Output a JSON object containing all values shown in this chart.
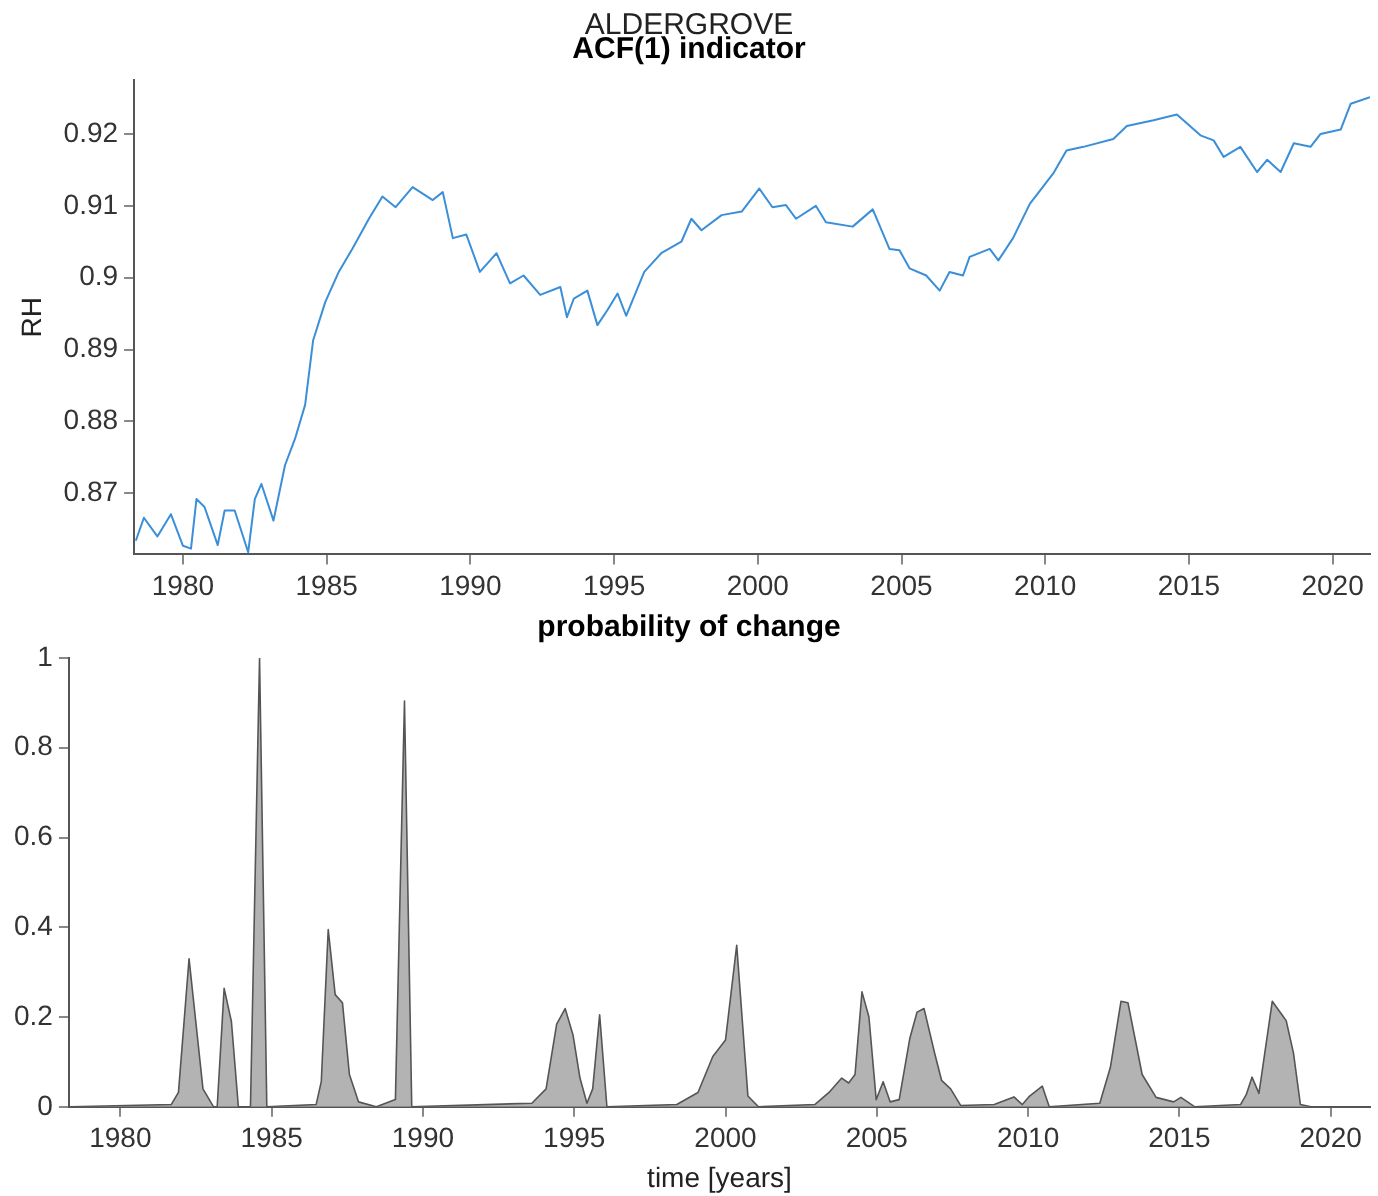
{
  "chart_data": [
    {
      "type": "line",
      "title": "ACF(1) indicator",
      "annotations": [
        "ALDERGROVE"
      ],
      "ylabel": "RH",
      "xlim": [
        1978.3,
        2021.3
      ],
      "ylim": [
        0.8615,
        0.9275
      ],
      "xticks": [
        1980,
        1985,
        1990,
        1995,
        2000,
        2005,
        2010,
        2015,
        2020
      ],
      "yticks": [
        0.87,
        0.88,
        0.89,
        0.9,
        0.91,
        0.92
      ],
      "grid": false,
      "legend": false,
      "marker": "none",
      "series": [
        {
          "color": "#3a8fd8",
          "x": [
            1978.36,
            1978.64,
            1979.11,
            1979.58,
            1980.0,
            1980.28,
            1980.47,
            1980.75,
            1981.21,
            1981.45,
            1981.8,
            1982.27,
            1982.5,
            1982.73,
            1983.15,
            1983.55,
            1983.9,
            1984.25,
            1984.53,
            1984.95,
            1985.42,
            1985.89,
            1986.47,
            1986.94,
            1987.4,
            1987.99,
            1988.69,
            1989.04,
            1989.39,
            1989.86,
            1990.33,
            1990.91,
            1991.38,
            1991.85,
            1992.43,
            1993.13,
            1993.36,
            1993.6,
            1994.07,
            1994.42,
            1994.77,
            1995.12,
            1995.42,
            1996.05,
            1996.64,
            1997.34,
            1997.69,
            1998.04,
            1998.74,
            1999.44,
            2000.05,
            2000.51,
            2000.98,
            2001.33,
            2002.02,
            2002.37,
            2003.3,
            2004.0,
            2004.58,
            2004.93,
            2005.28,
            2005.86,
            2006.33,
            2006.67,
            2007.14,
            2007.37,
            2008.07,
            2008.37,
            2008.88,
            2009.47,
            2010.28,
            2010.74,
            2011.33,
            2012.37,
            2012.84,
            2013.77,
            2014.58,
            2015.4,
            2015.86,
            2016.21,
            2016.79,
            2017.37,
            2017.72,
            2018.19,
            2018.65,
            2019.23,
            2019.58,
            2020.28,
            2020.63,
            2021.3
          ],
          "values": [
            0.8634,
            0.8666,
            0.864,
            0.8671,
            0.8627,
            0.8623,
            0.8692,
            0.8681,
            0.8628,
            0.8676,
            0.8676,
            0.8618,
            0.8692,
            0.8713,
            0.8662,
            0.8739,
            0.8776,
            0.8823,
            0.8913,
            0.8966,
            0.9008,
            0.904,
            0.9082,
            0.9113,
            0.9098,
            0.9126,
            0.9108,
            0.9119,
            0.9055,
            0.906,
            0.9008,
            0.9034,
            0.8992,
            0.9003,
            0.8976,
            0.8987,
            0.8945,
            0.8971,
            0.8982,
            0.8934,
            0.8955,
            0.8978,
            0.8947,
            0.9008,
            0.9034,
            0.905,
            0.9082,
            0.9066,
            0.9087,
            0.9092,
            0.9124,
            0.9098,
            0.9101,
            0.9082,
            0.91,
            0.9077,
            0.9071,
            0.9095,
            0.904,
            0.9038,
            0.9013,
            0.9003,
            0.8982,
            0.9008,
            0.9003,
            0.9029,
            0.904,
            0.9024,
            0.9055,
            0.9103,
            0.9145,
            0.9177,
            0.9182,
            0.9193,
            0.9211,
            0.9219,
            0.9227,
            0.9198,
            0.9191,
            0.9168,
            0.9182,
            0.9147,
            0.9164,
            0.9147,
            0.9187,
            0.9182,
            0.92,
            0.9206,
            0.9242,
            0.9251
          ]
        }
      ]
    },
    {
      "type": "area",
      "title": "probability of change",
      "xlabel": "time [years]",
      "xlim": [
        1978.3,
        2021.3
      ],
      "ylim": [
        0,
        1
      ],
      "xticks": [
        1980,
        1985,
        1990,
        1995,
        2000,
        2005,
        2010,
        2015,
        2020
      ],
      "yticks": [
        0,
        0.2,
        0.4,
        0.6,
        0.8,
        1
      ],
      "grid": false,
      "legend": false,
      "marker": "none",
      "series": [
        {
          "color": "#b3b3b3",
          "x": [
            1978.36,
            1981.68,
            1981.92,
            1982.27,
            1982.73,
            1983.08,
            1983.2,
            1983.43,
            1983.67,
            1983.9,
            1984.3,
            1984.6,
            1984.84,
            1986.47,
            1986.64,
            1986.87,
            1987.1,
            1987.34,
            1987.57,
            1987.87,
            1988.46,
            1989.09,
            1989.39,
            1989.63,
            1993.6,
            1994.07,
            1994.42,
            1994.7,
            1994.96,
            1995.19,
            1995.42,
            1995.61,
            1995.84,
            1996.08,
            1998.39,
            1999.09,
            1999.58,
            2000.0,
            2000.37,
            2000.74,
            2001.09,
            2002.95,
            2003.42,
            2003.84,
            2004.07,
            2004.28,
            2004.51,
            2004.74,
            2004.98,
            2005.21,
            2005.44,
            2005.74,
            2006.09,
            2006.33,
            2006.56,
            2006.91,
            2007.14,
            2007.44,
            2007.77,
            2008.88,
            2009.53,
            2009.81,
            2010.05,
            2010.47,
            2010.7,
            2012.37,
            2012.72,
            2013.07,
            2013.3,
            2013.77,
            2014.23,
            2014.81,
            2015.05,
            2015.51,
            2017.02,
            2017.21,
            2017.4,
            2017.63,
            2018.07,
            2018.53,
            2018.77,
            2019.0,
            2019.35,
            2021.3
          ],
          "values": [
            0,
            0.005,
            0.032,
            0.33,
            0.04,
            0,
            0,
            0.264,
            0.19,
            0,
            0,
            1,
            0,
            0.005,
            0.056,
            0.395,
            0.25,
            0.232,
            0.072,
            0.011,
            0,
            0.016,
            0.904,
            0,
            0.008,
            0.04,
            0.184,
            0.219,
            0.16,
            0.064,
            0.008,
            0.04,
            0.205,
            0,
            0.005,
            0.032,
            0.112,
            0.149,
            0.36,
            0.024,
            0,
            0.005,
            0.032,
            0.064,
            0.053,
            0.072,
            0.256,
            0.2,
            0.016,
            0.056,
            0.011,
            0.016,
            0.152,
            0.211,
            0.219,
            0.12,
            0.059,
            0.04,
            0.003,
            0.005,
            0.022,
            0.005,
            0.024,
            0.046,
            0,
            0.008,
            0.088,
            0.235,
            0.232,
            0.072,
            0.021,
            0.011,
            0.021,
            0,
            0.005,
            0.027,
            0.066,
            0.03,
            0.235,
            0.192,
            0.12,
            0.005,
            0,
            0
          ]
        }
      ]
    }
  ]
}
